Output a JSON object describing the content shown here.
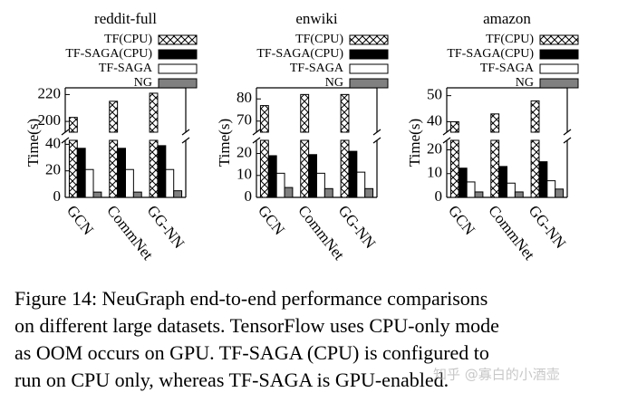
{
  "chart_data": [
    {
      "type": "bar",
      "title": "reddit-full",
      "y_label": "Time(s)",
      "categories": [
        "GCN",
        "CommNet",
        "GG-NN"
      ],
      "series": [
        {
          "name": "TF(CPU)",
          "color": "#ffffff",
          "hatch": "xx",
          "values": [
            203,
            215,
            221
          ]
        },
        {
          "name": "TF-SAGA(CPU)",
          "color": "#000000",
          "values": [
            37,
            37,
            39
          ]
        },
        {
          "name": "TF-SAGA",
          "color": "#ffffff",
          "values": [
            21,
            21,
            21
          ]
        },
        {
          "name": "NG",
          "color": "#808080",
          "values": [
            4,
            4,
            5
          ]
        }
      ],
      "ylim_lower": [
        0,
        43
      ],
      "ylim_upper": [
        192,
        225
      ],
      "yticks": [
        0,
        20,
        40,
        200,
        220
      ]
    },
    {
      "type": "bar",
      "title": "enwiki",
      "y_label": "Time(s)",
      "categories": [
        "GCN",
        "CommNet",
        "GG-NN"
      ],
      "series": [
        {
          "name": "TF(CPU)",
          "color": "#ffffff",
          "hatch": "xx",
          "values": [
            77,
            82,
            82
          ]
        },
        {
          "name": "TF-SAGA(CPU)",
          "color": "#000000",
          "values": [
            19,
            19.5,
            21
          ]
        },
        {
          "name": "TF-SAGA",
          "color": "#ffffff",
          "values": [
            11,
            11,
            11.5
          ]
        },
        {
          "name": "NG",
          "color": "#808080",
          "values": [
            4.5,
            4,
            4
          ]
        }
      ],
      "ylim_lower": [
        0,
        26
      ],
      "ylim_upper": [
        65,
        85
      ],
      "yticks": [
        0,
        10,
        20,
        70,
        80
      ]
    },
    {
      "type": "bar",
      "title": "amazon",
      "y_label": "Time(s)",
      "categories": [
        "GCN",
        "CommNet",
        "GG-NN"
      ],
      "series": [
        {
          "name": "TF(CPU)",
          "color": "#ffffff",
          "hatch": "xx",
          "values": [
            40,
            43,
            48
          ]
        },
        {
          "name": "TF-SAGA(CPU)",
          "color": "#000000",
          "values": [
            12.3,
            13,
            15
          ]
        },
        {
          "name": "TF-SAGA",
          "color": "#ffffff",
          "values": [
            6.5,
            6,
            7
          ]
        },
        {
          "name": "NG",
          "color": "#808080",
          "values": [
            2.3,
            2.3,
            3.5
          ]
        }
      ],
      "ylim_lower": [
        0,
        24
      ],
      "ylim_upper": [
        36,
        53
      ],
      "yticks": [
        0,
        10,
        20,
        40,
        50
      ]
    }
  ],
  "caption": [
    "Figure 14: NeuGraph end-to-end performance comparisons",
    "on different large datasets. TensorFlow uses CPU-only mode",
    "as OOM occurs on GPU. TF-SAGA (CPU) is configured to",
    "run on CPU only, whereas TF-SAGA is GPU-enabled."
  ],
  "watermark": "知乎 @寡白的小酒壶"
}
